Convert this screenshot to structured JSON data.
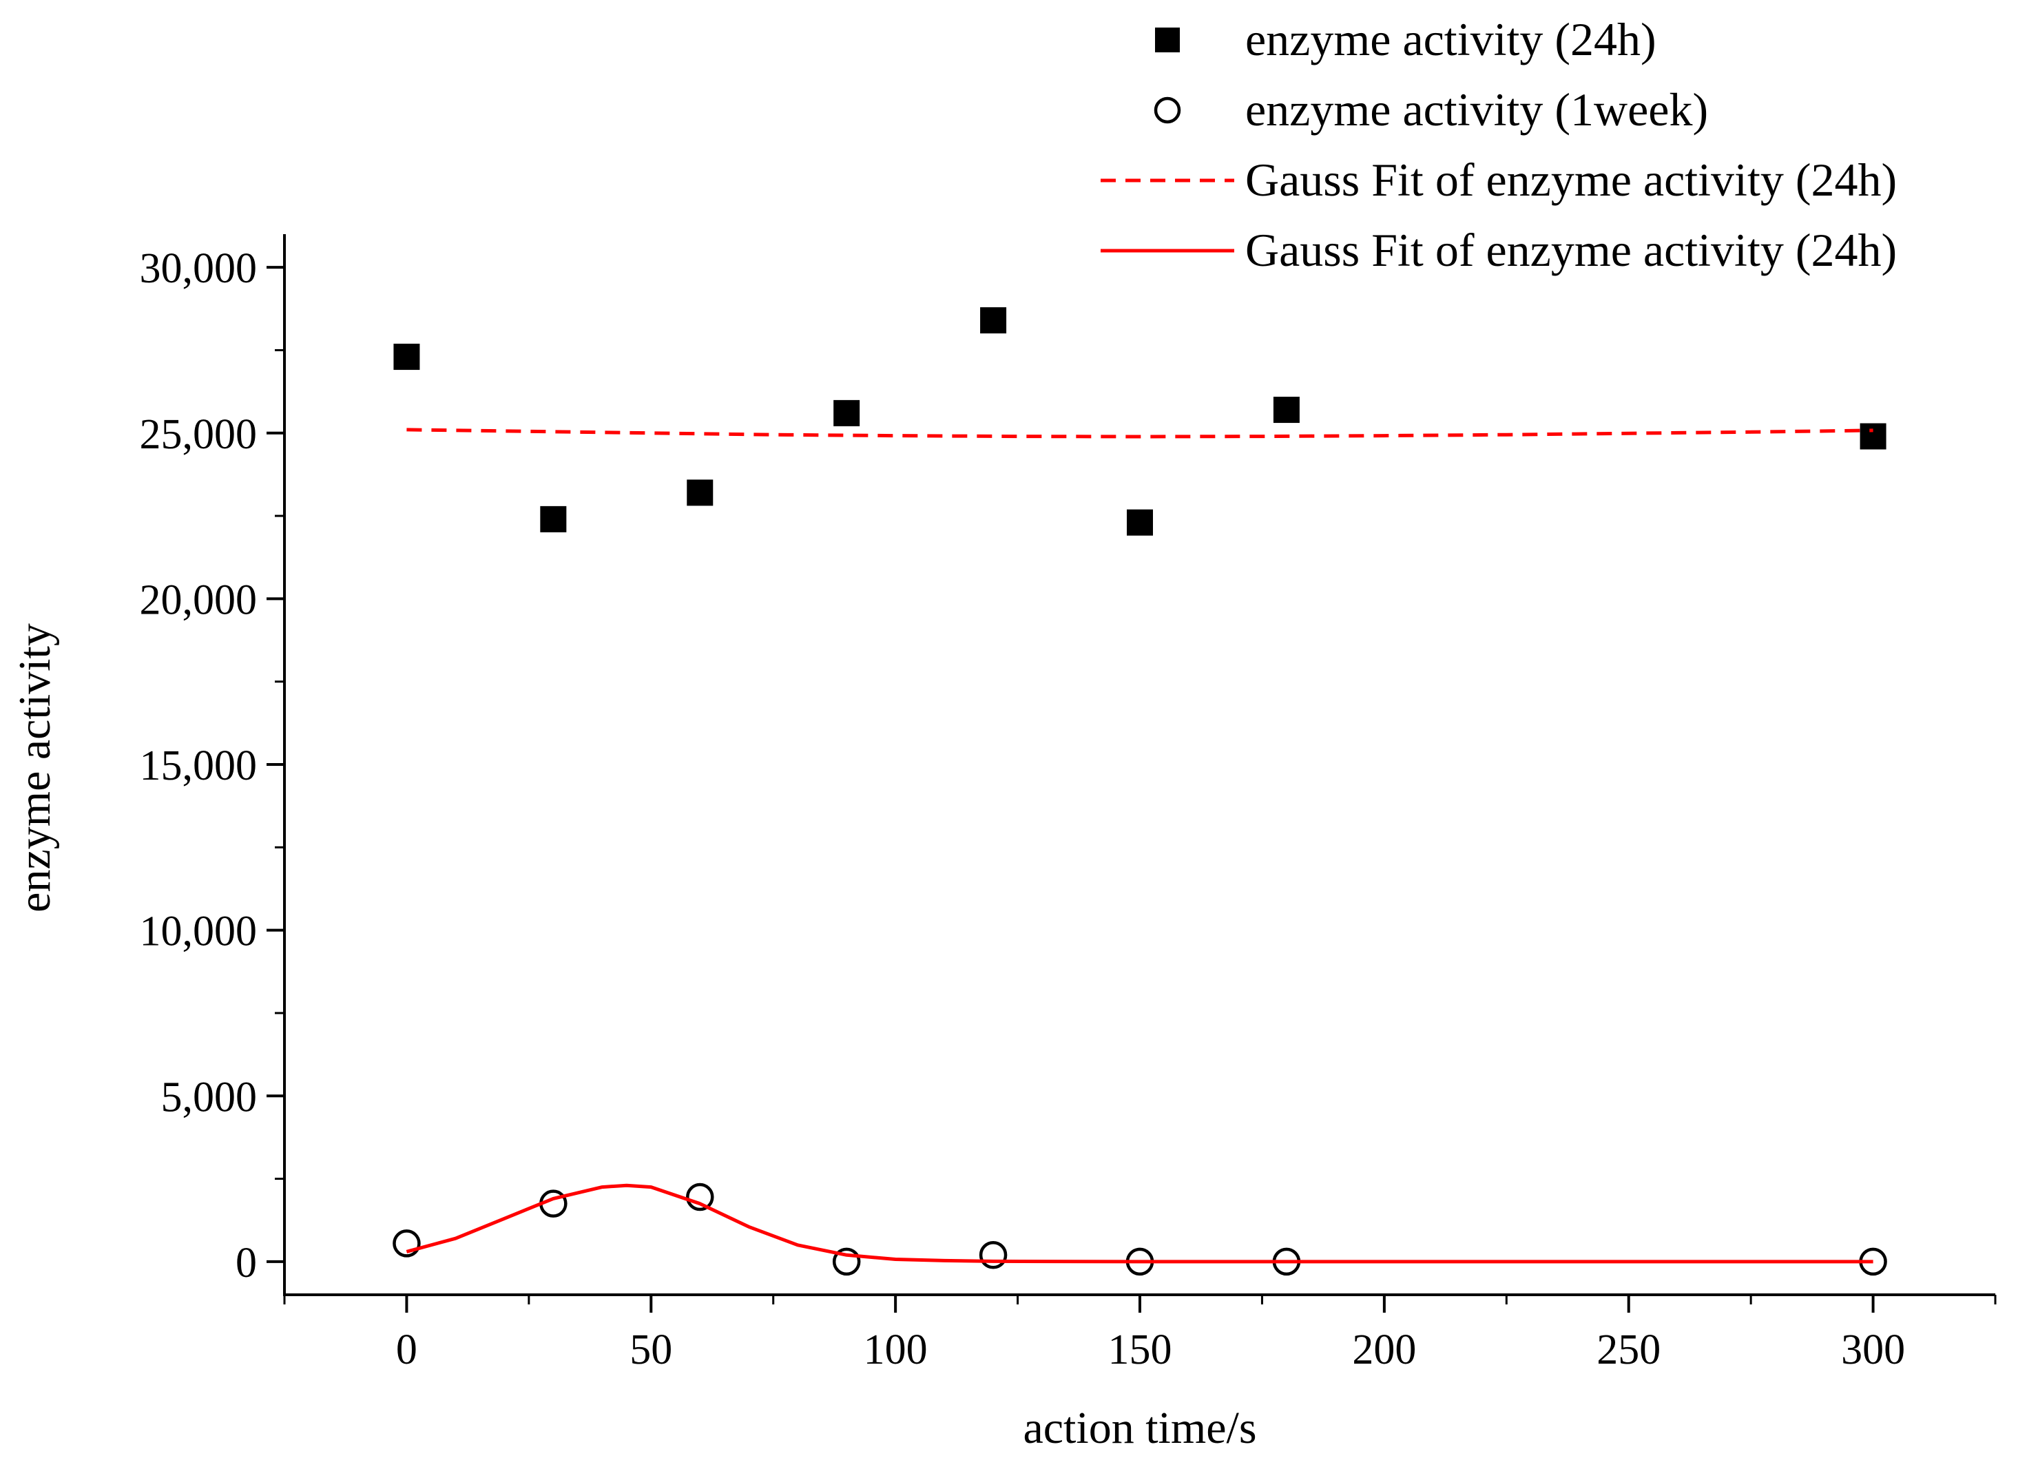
{
  "chart_data": {
    "type": "scatter",
    "title": "",
    "xlabel": "action time/s",
    "ylabel": "enzyme activity",
    "xlim": [
      -25,
      325
    ],
    "ylim": [
      -1000,
      31000
    ],
    "x_ticks": [
      "0",
      "50",
      "100",
      "150",
      "200",
      "250",
      "300"
    ],
    "x_tick_values": [
      0,
      50,
      100,
      150,
      200,
      250,
      300
    ],
    "y_ticks": [
      "0",
      "5,000",
      "10,000",
      "15,000",
      "20,000",
      "25,000",
      "30,000"
    ],
    "y_tick_values": [
      0,
      5000,
      10000,
      15000,
      20000,
      25000,
      30000
    ],
    "grid": false,
    "legend_position": "top-right",
    "series": [
      {
        "name": "enzyme activity (24h)",
        "kind": "scatter",
        "marker": "filled-square",
        "color": "#000000",
        "x": [
          0,
          30,
          60,
          90,
          120,
          150,
          180,
          300
        ],
        "y": [
          27300,
          22400,
          23200,
          25600,
          28400,
          22300,
          25700,
          24900
        ]
      },
      {
        "name": "enzyme activity (1week)",
        "kind": "scatter",
        "marker": "open-circle",
        "color": "#000000",
        "x": [
          0,
          30,
          60,
          90,
          120,
          150,
          180,
          300
        ],
        "y": [
          550,
          1750,
          1950,
          0,
          200,
          0,
          0,
          0
        ]
      },
      {
        "name": "Gauss Fit of enzyme activity (24h)",
        "kind": "line",
        "style": "dashed",
        "color": "#ff0000",
        "x": [
          0,
          25,
          50,
          75,
          100,
          125,
          150,
          175,
          200,
          225,
          250,
          275,
          300
        ],
        "y": [
          25100,
          25050,
          25000,
          24950,
          24920,
          24900,
          24890,
          24900,
          24920,
          24950,
          24990,
          25030,
          25080
        ]
      },
      {
        "name": "Gauss Fit of enzyme activity (24h)",
        "kind": "line",
        "style": "solid",
        "color": "#ff0000",
        "x": [
          0,
          10,
          20,
          30,
          40,
          45,
          50,
          60,
          70,
          80,
          90,
          100,
          110,
          120,
          150,
          180,
          240,
          300
        ],
        "y": [
          300,
          700,
          1300,
          1900,
          2250,
          2300,
          2250,
          1750,
          1050,
          500,
          200,
          70,
          30,
          10,
          0,
          0,
          0,
          0
        ]
      }
    ]
  }
}
